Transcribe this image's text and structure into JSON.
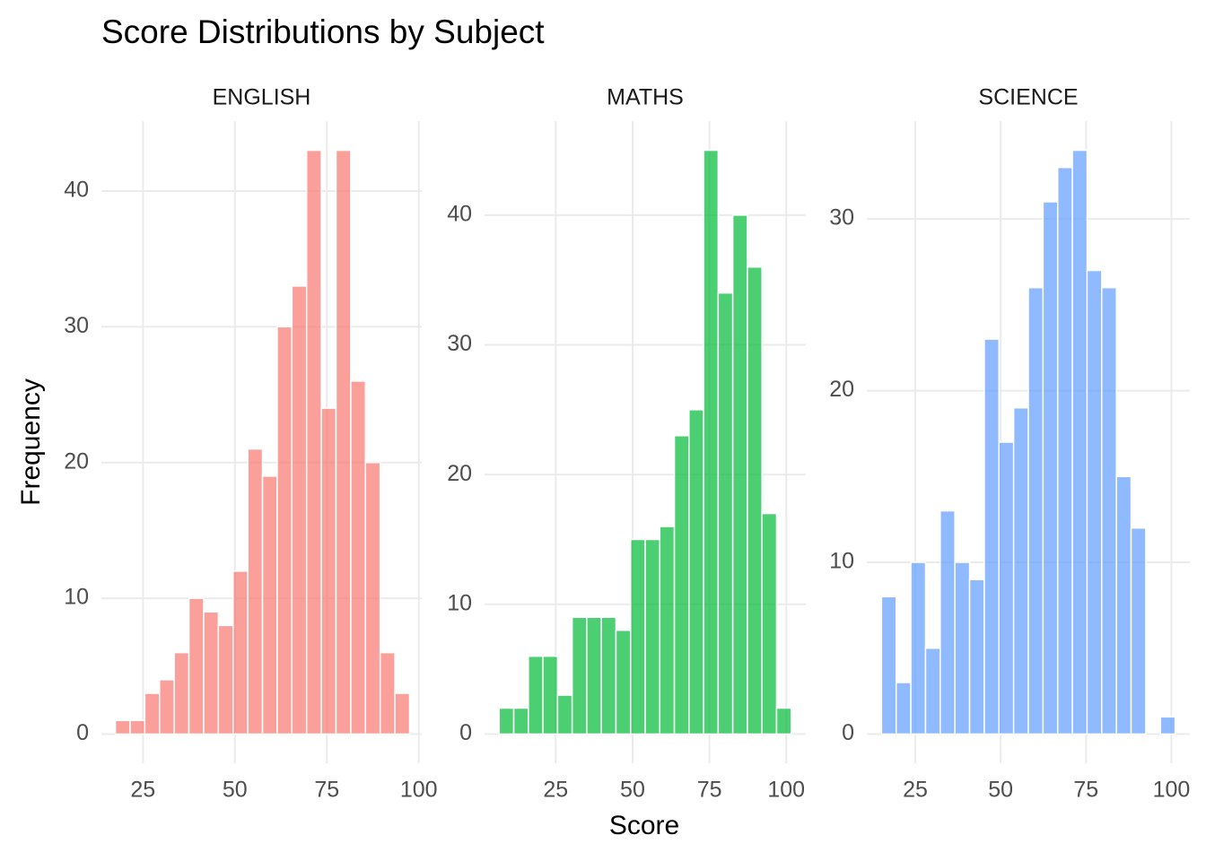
{
  "title": "Score Distributions by Subject",
  "x_label": "Score",
  "y_label": "Frequency",
  "chart_data": [
    {
      "type": "histogram",
      "title": "ENGLISH",
      "color": "#F8766D",
      "grid": true,
      "bins": [
        17.5,
        21.5,
        25.5,
        29.5,
        33.5,
        37.5,
        41.5,
        45.5,
        49.5,
        53.5,
        57.5,
        61.5,
        65.5,
        69.5,
        73.5,
        77.5,
        81.5,
        85.5,
        89.5,
        93.5,
        97.5
      ],
      "values": [
        1,
        1,
        3,
        4,
        6,
        10,
        9,
        8,
        12,
        21,
        19,
        30,
        33,
        43,
        24,
        43,
        26,
        20,
        6,
        3
      ],
      "xlim": [
        13.7,
        100.8
      ],
      "ylim": [
        -2.15,
        45.15
      ],
      "xticks": [
        25,
        50,
        75,
        100
      ],
      "yticks": [
        0,
        10,
        20,
        30,
        40
      ]
    },
    {
      "type": "histogram",
      "title": "MATHS",
      "color": "#00BA38",
      "grid": true,
      "bins": [
        6.6,
        11.35,
        16.1,
        20.85,
        25.6,
        30.35,
        35.1,
        39.85,
        44.6,
        49.35,
        54.1,
        58.85,
        63.6,
        68.35,
        73.1,
        77.85,
        82.6,
        87.35,
        92.1,
        96.85,
        101.6
      ],
      "values": [
        2,
        2,
        6,
        6,
        3,
        9,
        9,
        9,
        8,
        15,
        15,
        16,
        23,
        25,
        45,
        34,
        40,
        36,
        17,
        2
      ],
      "xlim": [
        1.85,
        106.35
      ],
      "ylim": [
        -2.25,
        47.25
      ],
      "xticks": [
        25,
        50,
        75,
        100
      ],
      "yticks": [
        0,
        10,
        20,
        30,
        40
      ]
    },
    {
      "type": "histogram",
      "title": "SCIENCE",
      "color": "#619CFF",
      "grid": true,
      "bins": [
        15.1,
        19.4,
        23.7,
        28,
        32.3,
        36.6,
        40.9,
        45.2,
        49.5,
        53.8,
        58.1,
        62.4,
        66.7,
        71,
        75.3,
        79.6,
        83.9,
        88.2,
        92.5,
        96.8,
        101.1
      ],
      "values": [
        8,
        3,
        10,
        5,
        13,
        10,
        9,
        23,
        17,
        19,
        26,
        31,
        33,
        34,
        27,
        26,
        15,
        12,
        0,
        1
      ],
      "xlim": [
        10.8,
        105.4
      ],
      "ylim": [
        -1.7,
        35.7
      ],
      "xticks": [
        25,
        50,
        75,
        100
      ],
      "yticks": [
        0,
        10,
        20,
        30
      ]
    }
  ]
}
